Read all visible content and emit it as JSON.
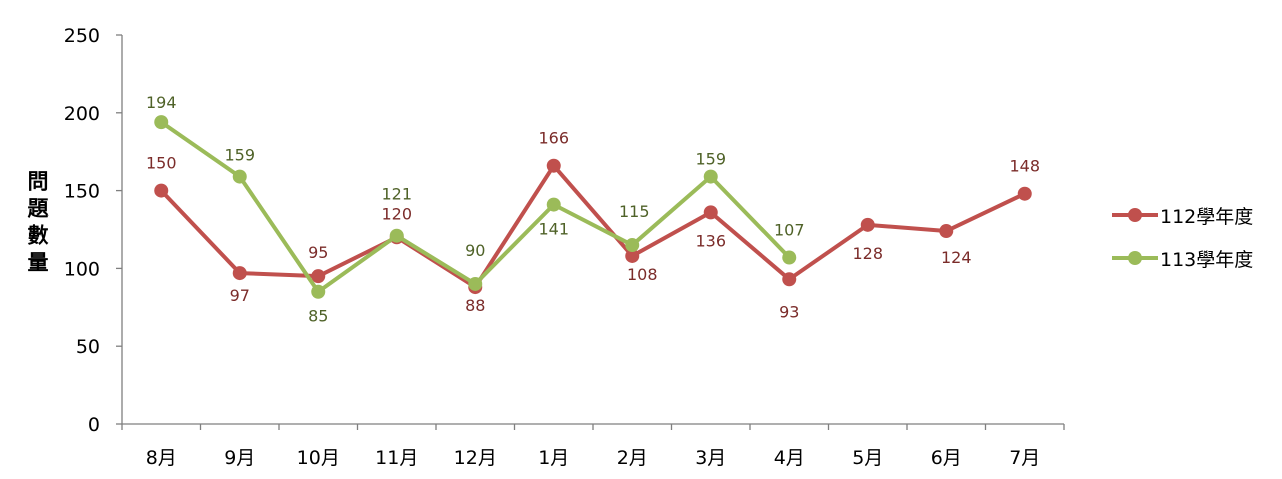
{
  "chart_data": {
    "type": "line",
    "title": "",
    "xlabel": "",
    "ylabel": "問題數量",
    "categories": [
      "8月",
      "9月",
      "10月",
      "11月",
      "12月",
      "1月",
      "2月",
      "3月",
      "4月",
      "5月",
      "6月",
      "7月"
    ],
    "ylim": [
      0,
      250
    ],
    "yticks": [
      0,
      50,
      100,
      150,
      200,
      250
    ],
    "grid": false,
    "legend_position": "right",
    "series": [
      {
        "name": "112學年度",
        "color": "#c0504d",
        "label_color": "#7b2c2a",
        "values": [
          150,
          97,
          95,
          120,
          88,
          166,
          108,
          136,
          93,
          128,
          124,
          148
        ]
      },
      {
        "name": "113學年度",
        "color": "#9bbb59",
        "label_color": "#4f6228",
        "values": [
          194,
          159,
          85,
          121,
          90,
          141,
          115,
          159,
          107,
          null,
          null,
          null
        ]
      }
    ]
  }
}
